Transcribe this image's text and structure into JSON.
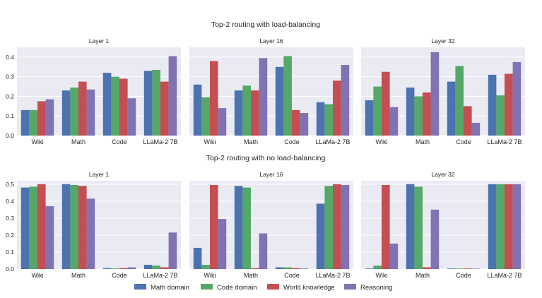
{
  "figure": {
    "legend": {
      "placement": "bottom-center",
      "entries": [
        "Math domain",
        "Code domain",
        "World knowledge",
        "Reasoning"
      ]
    }
  },
  "chart_data": [
    {
      "type": "bar",
      "row_title": "Top-2 routing with load-balancing",
      "title": "Layer 1",
      "categories": [
        "Wiki",
        "Math",
        "Code",
        "LLaMa-2 7B"
      ],
      "ylim": [
        0,
        0.45
      ],
      "yticks": [
        "0.0",
        "0.1",
        "0.2",
        "0.3",
        "0.4"
      ],
      "series": [
        {
          "name": "Math domain",
          "color": "#4c72b0",
          "values": [
            0.13,
            0.23,
            0.32,
            0.33
          ]
        },
        {
          "name": "Code domain",
          "color": "#55a868",
          "values": [
            0.13,
            0.245,
            0.3,
            0.335
          ]
        },
        {
          "name": "World knowledge",
          "color": "#c44e52",
          "values": [
            0.175,
            0.275,
            0.29,
            0.275
          ]
        },
        {
          "name": "Reasoning",
          "color": "#8172b2",
          "values": [
            0.185,
            0.235,
            0.19,
            0.405
          ]
        }
      ]
    },
    {
      "type": "bar",
      "title": "Layer 16",
      "categories": [
        "Wiki",
        "Math",
        "Code",
        "LLaMa-2 7B"
      ],
      "ylim": [
        0,
        0.45
      ],
      "series": [
        {
          "name": "Math domain",
          "color": "#4c72b0",
          "values": [
            0.26,
            0.23,
            0.35,
            0.17
          ]
        },
        {
          "name": "Code domain",
          "color": "#55a868",
          "values": [
            0.195,
            0.255,
            0.405,
            0.16
          ]
        },
        {
          "name": "World knowledge",
          "color": "#c44e52",
          "values": [
            0.38,
            0.23,
            0.13,
            0.28
          ]
        },
        {
          "name": "Reasoning",
          "color": "#8172b2",
          "values": [
            0.14,
            0.395,
            0.115,
            0.36
          ]
        }
      ]
    },
    {
      "type": "bar",
      "title": "Layer 32",
      "categories": [
        "Wiki",
        "Math",
        "Code",
        "LLaMa-2 7B"
      ],
      "ylim": [
        0,
        0.45
      ],
      "series": [
        {
          "name": "Math domain",
          "color": "#4c72b0",
          "values": [
            0.18,
            0.245,
            0.275,
            0.31
          ]
        },
        {
          "name": "Code domain",
          "color": "#55a868",
          "values": [
            0.25,
            0.2,
            0.355,
            0.205
          ]
        },
        {
          "name": "World knowledge",
          "color": "#c44e52",
          "values": [
            0.325,
            0.22,
            0.15,
            0.315
          ]
        },
        {
          "name": "Reasoning",
          "color": "#8172b2",
          "values": [
            0.145,
            0.425,
            0.065,
            0.375
          ]
        }
      ]
    },
    {
      "type": "bar",
      "row_title": "Top-2 routing with no load-balancing",
      "title": "Layer 1",
      "categories": [
        "Wiki",
        "Math",
        "Code",
        "LLaMa-2 7B"
      ],
      "ylim": [
        0,
        0.52
      ],
      "yticks": [
        "0.0",
        "0.1",
        "0.2",
        "0.3",
        "0.4",
        "0.5"
      ],
      "series": [
        {
          "name": "Math domain",
          "color": "#4c72b0",
          "values": [
            0.48,
            0.5,
            0.005,
            0.025
          ]
        },
        {
          "name": "Code domain",
          "color": "#55a868",
          "values": [
            0.485,
            0.495,
            0.003,
            0.02
          ]
        },
        {
          "name": "World knowledge",
          "color": "#c44e52",
          "values": [
            0.5,
            0.49,
            0.005,
            0.01
          ]
        },
        {
          "name": "Reasoning",
          "color": "#8172b2",
          "values": [
            0.37,
            0.415,
            0.01,
            0.215
          ]
        }
      ]
    },
    {
      "type": "bar",
      "title": "Layer 16",
      "categories": [
        "Wiki",
        "Math",
        "Code",
        "LLaMa-2 7B"
      ],
      "ylim": [
        0,
        0.52
      ],
      "series": [
        {
          "name": "Math domain",
          "color": "#4c72b0",
          "values": [
            0.125,
            0.49,
            0.01,
            0.385
          ]
        },
        {
          "name": "Code domain",
          "color": "#55a868",
          "values": [
            0.025,
            0.48,
            0.01,
            0.49
          ]
        },
        {
          "name": "World knowledge",
          "color": "#c44e52",
          "values": [
            0.495,
            0.005,
            0.005,
            0.5
          ]
        },
        {
          "name": "Reasoning",
          "color": "#8172b2",
          "values": [
            0.295,
            0.21,
            0.003,
            0.495
          ]
        }
      ]
    },
    {
      "type": "bar",
      "title": "Layer 32",
      "categories": [
        "Wiki",
        "Math",
        "Code",
        "LLaMa-2 7B"
      ],
      "ylim": [
        0,
        0.52
      ],
      "series": [
        {
          "name": "Math domain",
          "color": "#4c72b0",
          "values": [
            0.003,
            0.5,
            0.003,
            0.5
          ]
        },
        {
          "name": "Code domain",
          "color": "#55a868",
          "values": [
            0.02,
            0.485,
            0.003,
            0.5
          ]
        },
        {
          "name": "World knowledge",
          "color": "#c44e52",
          "values": [
            0.495,
            0.01,
            0.003,
            0.5
          ]
        },
        {
          "name": "Reasoning",
          "color": "#8172b2",
          "values": [
            0.15,
            0.35,
            0.002,
            0.5
          ]
        }
      ]
    }
  ]
}
